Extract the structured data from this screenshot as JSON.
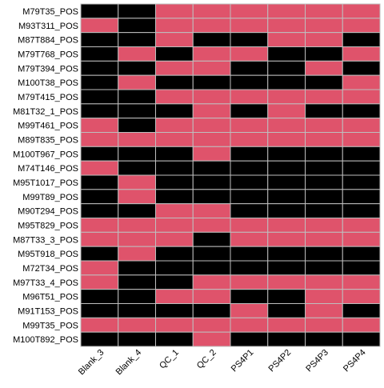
{
  "chart_data": {
    "type": "heatmap",
    "title": "",
    "xlabel": "",
    "ylabel": "",
    "columns": [
      "Blank_3",
      "Blank_4",
      "QC_1",
      "QC_2",
      "PS4P1",
      "PS4P2",
      "PS4P3",
      "PS4P4"
    ],
    "rows": [
      "M79T35_POS",
      "M93T311_POS",
      "M87T884_POS",
      "M79T768_POS",
      "M79T394_POS",
      "M100T38_POS",
      "M79T415_POS",
      "M81T32_1_POS",
      "M99T461_POS",
      "M89T835_POS",
      "M100T967_POS",
      "M74T146_POS",
      "M95T1017_POS",
      "M99T89_POS",
      "M90T294_POS",
      "M95T829_POS",
      "M87T33_3_POS",
      "M95T918_POS",
      "M72T34_POS",
      "M97T33_4_POS",
      "M96T51_POS",
      "M91T153_POS",
      "M99T35_POS",
      "M100T892_POS"
    ],
    "values": [
      [
        0,
        0,
        1,
        1,
        1,
        1,
        1,
        1
      ],
      [
        1,
        0,
        1,
        1,
        1,
        1,
        1,
        1
      ],
      [
        0,
        0,
        1,
        0,
        0,
        1,
        1,
        0
      ],
      [
        0,
        1,
        0,
        1,
        1,
        0,
        0,
        1
      ],
      [
        0,
        0,
        1,
        1,
        0,
        0,
        1,
        0
      ],
      [
        0,
        1,
        0,
        0,
        0,
        0,
        0,
        1
      ],
      [
        0,
        0,
        1,
        1,
        1,
        1,
        1,
        1
      ],
      [
        0,
        0,
        0,
        1,
        0,
        1,
        0,
        0
      ],
      [
        1,
        0,
        1,
        1,
        1,
        1,
        1,
        1
      ],
      [
        1,
        1,
        1,
        1,
        1,
        1,
        1,
        1
      ],
      [
        0,
        0,
        0,
        1,
        0,
        0,
        0,
        0
      ],
      [
        1,
        0,
        0,
        0,
        0,
        0,
        0,
        0
      ],
      [
        0,
        1,
        0,
        0,
        0,
        0,
        0,
        0
      ],
      [
        0,
        1,
        0,
        0,
        0,
        0,
        0,
        0
      ],
      [
        0,
        0,
        1,
        1,
        0,
        0,
        0,
        0
      ],
      [
        1,
        1,
        1,
        1,
        1,
        1,
        1,
        1
      ],
      [
        1,
        1,
        1,
        0,
        1,
        1,
        1,
        1
      ],
      [
        0,
        1,
        0,
        0,
        0,
        0,
        0,
        0
      ],
      [
        1,
        0,
        0,
        0,
        0,
        0,
        0,
        0
      ],
      [
        1,
        0,
        0,
        1,
        1,
        1,
        1,
        1
      ],
      [
        0,
        0,
        1,
        1,
        0,
        0,
        1,
        1
      ],
      [
        0,
        0,
        0,
        0,
        1,
        0,
        1,
        0
      ],
      [
        1,
        1,
        1,
        1,
        1,
        1,
        1,
        1
      ],
      [
        0,
        0,
        0,
        1,
        0,
        0,
        0,
        0
      ]
    ],
    "legend": "none",
    "grid": true,
    "colors": {
      "present": "#DF536B",
      "absent": "#000000",
      "gridline": "#BEBEBE",
      "label": "#000000"
    }
  }
}
